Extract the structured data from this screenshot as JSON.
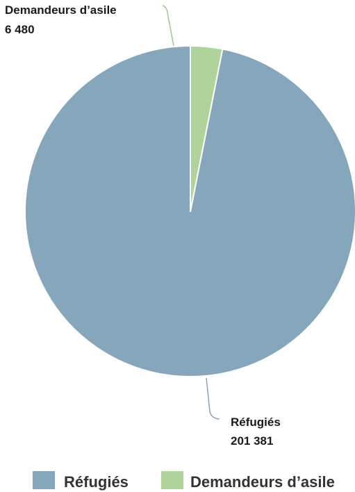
{
  "chart_data": {
    "type": "pie",
    "slices": [
      {
        "label": "Réfugiés",
        "value": 201381,
        "value_label": "201 381",
        "color": "#86a6bc"
      },
      {
        "label": "Demandeurs d’asile",
        "value": 6480,
        "value_label": "6 480",
        "color": "#b0d39c"
      }
    ],
    "legend": {
      "position": "bottom",
      "entries": [
        "Réfugiés",
        "Demandeurs d’asile"
      ]
    }
  }
}
